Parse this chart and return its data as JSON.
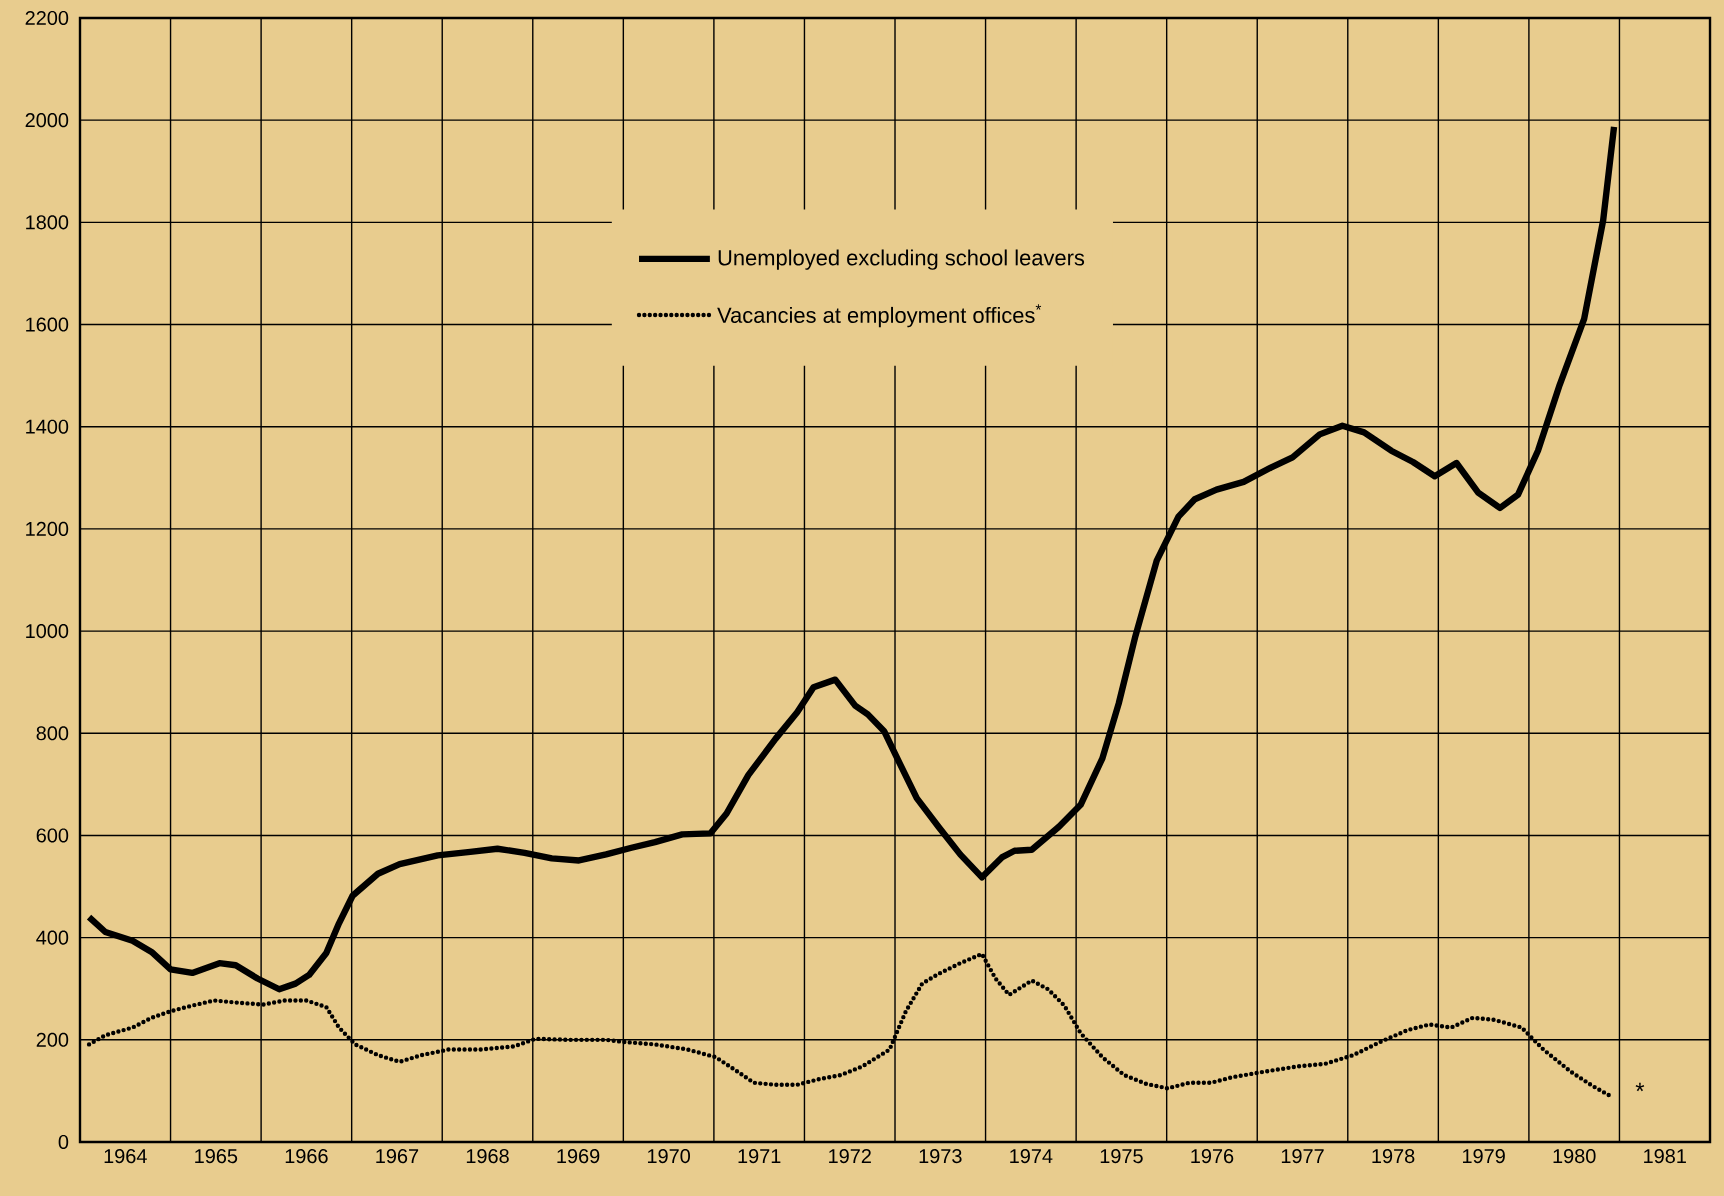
{
  "chart_data": {
    "type": "line",
    "xlim": [
      1964,
      1982
    ],
    "ylim": [
      0,
      2200
    ],
    "xticks": [
      {
        "value": 1965,
        "label": null
      },
      {
        "value": 1966,
        "label": null
      },
      {
        "value": 1967,
        "label": null
      },
      {
        "value": 1968,
        "label": null
      },
      {
        "value": 1969,
        "label": null
      },
      {
        "value": 1970,
        "label": null
      },
      {
        "value": 1971,
        "label": null
      },
      {
        "value": 1972,
        "label": null
      },
      {
        "value": 1973,
        "label": null
      },
      {
        "value": 1974,
        "label": null
      },
      {
        "value": 1975,
        "label": null
      },
      {
        "value": 1976,
        "label": null
      },
      {
        "value": 1977,
        "label": null
      },
      {
        "value": 1978,
        "label": null
      },
      {
        "value": 1979,
        "label": null
      },
      {
        "value": 1980,
        "label": null
      },
      {
        "value": 1981,
        "label": null
      },
      {
        "value": 1964.5,
        "label": "1964"
      },
      {
        "value": 1965.5,
        "label": "1965"
      },
      {
        "value": 1966.5,
        "label": "1966"
      },
      {
        "value": 1967.5,
        "label": "1967"
      },
      {
        "value": 1968.5,
        "label": "1968"
      },
      {
        "value": 1969.5,
        "label": "1969"
      },
      {
        "value": 1970.5,
        "label": "1970"
      },
      {
        "value": 1971.5,
        "label": "1971"
      },
      {
        "value": 1972.5,
        "label": "1972"
      },
      {
        "value": 1973.5,
        "label": "1973"
      },
      {
        "value": 1974.5,
        "label": "1974"
      },
      {
        "value": 1975.5,
        "label": "1975"
      },
      {
        "value": 1976.5,
        "label": "1976"
      },
      {
        "value": 1977.5,
        "label": "1977"
      },
      {
        "value": 1978.5,
        "label": "1978"
      },
      {
        "value": 1979.5,
        "label": "1979"
      },
      {
        "value": 1980.5,
        "label": "1980"
      },
      {
        "value": 1981.5,
        "label": "1981"
      }
    ],
    "yticks": [
      0,
      200,
      400,
      600,
      800,
      1000,
      1200,
      1400,
      1600,
      1800,
      2000,
      2200
    ],
    "grid": true,
    "legend": "top",
    "annotations": [
      "*"
    ],
    "series": [
      {
        "name": "Unemployed excluding school leavers",
        "color": "#000000",
        "line_style": "solid",
        "x": [
          1964.1,
          1964.28,
          1964.58,
          1964.79,
          1965.0,
          1965.24,
          1965.54,
          1965.72,
          1965.96,
          1966.2,
          1966.38,
          1966.53,
          1966.72,
          1966.86,
          1967.01,
          1967.29,
          1967.53,
          1967.95,
          1968.31,
          1968.61,
          1968.91,
          1969.21,
          1969.51,
          1969.81,
          1970.09,
          1970.35,
          1970.65,
          1970.96,
          1971.14,
          1971.38,
          1971.68,
          1971.92,
          1972.1,
          1972.34,
          1972.56,
          1972.7,
          1972.88,
          1973.06,
          1973.24,
          1973.48,
          1973.72,
          1973.96,
          1974.18,
          1974.32,
          1974.51,
          1974.81,
          1975.05,
          1975.29,
          1975.47,
          1975.65,
          1975.89,
          1976.13,
          1976.31,
          1976.55,
          1976.85,
          1977.15,
          1977.39,
          1977.69,
          1977.94,
          1978.18,
          1978.48,
          1978.72,
          1978.96,
          1979.2,
          1979.44,
          1979.68,
          1979.88,
          1980.1,
          1980.34,
          1980.61,
          1980.82,
          1980.94
        ],
        "values": [
          440,
          411,
          394,
          372,
          338,
          331,
          350,
          346,
          320,
          299,
          310,
          327,
          370,
          428,
          482,
          525,
          544,
          561,
          568,
          574,
          566,
          555,
          551,
          563,
          576,
          587,
          602,
          604,
          643,
          718,
          789,
          841,
          890,
          905,
          854,
          837,
          804,
          738,
          673,
          617,
          563,
          518,
          557,
          570,
          572,
          617,
          660,
          751,
          858,
          987,
          1138,
          1224,
          1258,
          1277,
          1292,
          1320,
          1340,
          1385,
          1402,
          1389,
          1353,
          1331,
          1303,
          1329,
          1271,
          1241,
          1267,
          1353,
          1482,
          1611,
          1804,
          1987
        ]
      },
      {
        "name": "Vacancies at employment offices$^{*}$",
        "color": "#000000",
        "line_style": "dotted",
        "x": [
          1964.1,
          1964.28,
          1964.58,
          1964.79,
          1965.0,
          1965.24,
          1965.48,
          1965.72,
          1966.02,
          1966.26,
          1966.5,
          1966.72,
          1966.86,
          1967.04,
          1967.29,
          1967.53,
          1967.77,
          1968.07,
          1968.43,
          1968.79,
          1969.03,
          1969.39,
          1969.81,
          1969.99,
          1970.35,
          1970.71,
          1971.02,
          1971.26,
          1971.44,
          1971.68,
          1971.92,
          1972.16,
          1972.4,
          1972.64,
          1972.94,
          1973.12,
          1973.3,
          1973.48,
          1973.72,
          1973.96,
          1974.11,
          1974.26,
          1974.51,
          1974.69,
          1974.87,
          1975.05,
          1975.29,
          1975.53,
          1975.77,
          1976.01,
          1976.25,
          1976.49,
          1976.73,
          1977.09,
          1977.45,
          1977.75,
          1978.06,
          1978.36,
          1978.66,
          1978.9,
          1979.14,
          1979.38,
          1979.62,
          1979.92,
          1980.16,
          1980.46,
          1980.7,
          1980.92
        ],
        "values": [
          191,
          209,
          224,
          243,
          256,
          267,
          277,
          273,
          269,
          277,
          277,
          264,
          224,
          191,
          170,
          157,
          170,
          181,
          181,
          187,
          202,
          200,
          200,
          196,
          191,
          181,
          166,
          138,
          116,
          112,
          112,
          123,
          131,
          148,
          181,
          256,
          310,
          329,
          350,
          368,
          320,
          288,
          316,
          299,
          267,
          213,
          166,
          131,
          114,
          105,
          116,
          116,
          127,
          138,
          148,
          153,
          170,
          196,
          219,
          230,
          224,
          243,
          239,
          224,
          181,
          138,
          110,
          88
        ]
      }
    ]
  }
}
